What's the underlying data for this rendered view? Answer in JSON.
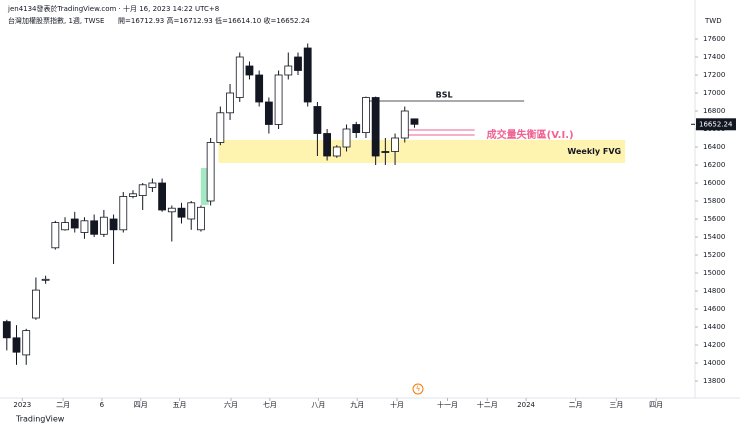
{
  "header": {
    "author": "jen4134發表於TradingView.com · 十月 16, 2023 14:22 UTC+8",
    "symbol": "台灣加權股票指數, 1週, TWSE",
    "ohlc": "開=16712.93 高=16712.93 低=16614.10 收=16652.24",
    "currency": "TWD",
    "logo": "TradingView"
  },
  "chart_data": {
    "type": "candlestick",
    "open": [
      14460,
      14280,
      14090,
      14500,
      14920,
      15280,
      15480,
      15600,
      15450,
      15580,
      15430,
      15600,
      15480,
      15850,
      15860,
      15950,
      16000,
      15680,
      15720,
      15600,
      15480,
      15800,
      16450,
      16780,
      16950,
      17300,
      17200,
      16900,
      16650,
      17200,
      17400,
      17500,
      16850,
      16550,
      16300,
      16400,
      16650,
      16560,
      16950,
      16350,
      16350,
      16500,
      16712.93
    ],
    "high": [
      14480,
      14420,
      14380,
      14950,
      14970,
      15580,
      15620,
      15680,
      15620,
      15650,
      15700,
      15650,
      15900,
      15920,
      16000,
      16050,
      16050,
      15750,
      15780,
      15800,
      15750,
      16500,
      16850,
      17100,
      17450,
      17350,
      17250,
      16950,
      17250,
      17450,
      17450,
      17550,
      16900,
      16600,
      16420,
      16650,
      16680,
      16960,
      16960,
      16500,
      16550,
      16850,
      16712.93
    ],
    "low": [
      14140,
      13980,
      13980,
      14480,
      14880,
      15260,
      15470,
      15450,
      15380,
      15400,
      15400,
      15100,
      15450,
      15830,
      15700,
      15900,
      15680,
      15350,
      15550,
      15480,
      15460,
      15750,
      16420,
      16700,
      16900,
      17150,
      16850,
      16550,
      16600,
      17150,
      17200,
      16850,
      16300,
      16250,
      16280,
      16350,
      16500,
      16500,
      16200,
      16200,
      16200,
      16450,
      16614.1
    ],
    "close": [
      14280,
      14120,
      14360,
      14810,
      14930,
      15560,
      15560,
      15500,
      15580,
      15430,
      15620,
      15480,
      15850,
      15880,
      15980,
      16000,
      15700,
      15720,
      15620,
      15780,
      15730,
      16450,
      16780,
      17000,
      17400,
      17200,
      16900,
      16650,
      17200,
      17300,
      17250,
      16900,
      16550,
      16300,
      16400,
      16600,
      16560,
      16950,
      16300,
      16340,
      16500,
      16800,
      16652.24
    ],
    "last_price": {
      "value": 16652.24,
      "label": "16652.24"
    },
    "xlim": [
      -0.7,
      70.9
    ],
    "xticks": [
      {
        "value": 1.6,
        "label": "2023"
      },
      {
        "value": 5.8,
        "label": "二月"
      },
      {
        "value": 9.8,
        "label": "6"
      },
      {
        "value": 13.8,
        "label": "四月"
      },
      {
        "value": 17.8,
        "label": "五月"
      },
      {
        "value": 23.1,
        "label": "六月"
      },
      {
        "value": 27.1,
        "label": "七月"
      },
      {
        "value": 32.1,
        "label": "八月"
      },
      {
        "value": 36.1,
        "label": "九月"
      },
      {
        "value": 40.2,
        "label": "十月"
      },
      {
        "value": 45.4,
        "label": "十一月"
      },
      {
        "value": 49.5,
        "label": "十二月"
      },
      {
        "value": 53.5,
        "label": "2024"
      },
      {
        "value": 58.6,
        "label": "二月"
      },
      {
        "value": 62.8,
        "label": "三月"
      },
      {
        "value": 66.9,
        "label": "四月"
      }
    ],
    "ylim": [
      13600,
      17800
    ],
    "yticks": [
      13800,
      14000,
      14200,
      14400,
      14600,
      14800,
      15000,
      15200,
      15400,
      15600,
      15800,
      16000,
      16200,
      16400,
      16600,
      16800,
      17000,
      17200,
      17400,
      17600
    ],
    "fvg": {
      "label": "Weekly FVG",
      "range": [
        16222,
        16478
      ],
      "from": 21.8,
      "to": 63.7,
      "color": "#fff3b0"
    },
    "bsl": {
      "label": "BSL",
      "value": 16911,
      "from": 36.8,
      "to": 53.3
    },
    "vi": {
      "label": "成交量失衡區(V.I.)",
      "values": [
        16589,
        16533
      ],
      "from": 41.0,
      "to": 48.2,
      "color": "#f06292"
    },
    "vi_box": {
      "range": [
        15755,
        16167
      ],
      "at": 20.4,
      "color": "#a5e8c4"
    }
  }
}
